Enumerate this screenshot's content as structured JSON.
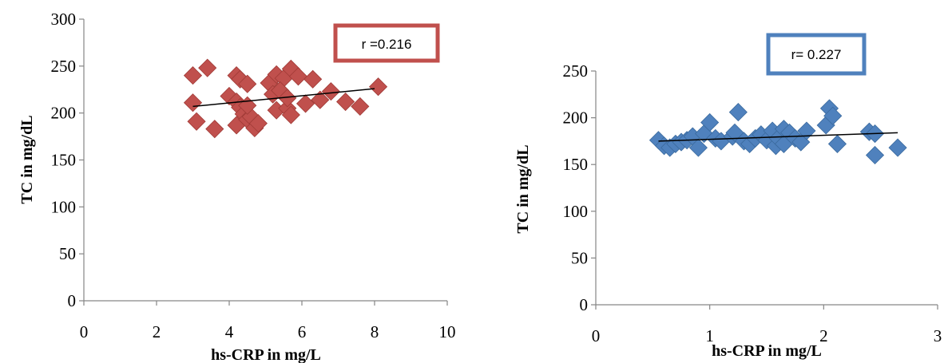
{
  "chart_data": [
    {
      "type": "scatter",
      "xlabel": "hs-CRP in mg/L",
      "ylabel": "TC in mg/dL",
      "xlim": [
        0,
        10
      ],
      "ylim": [
        0,
        300
      ],
      "x_ticks": [
        "0",
        "2",
        "4",
        "6",
        "8",
        "10"
      ],
      "y_ticks": [
        "0",
        "50",
        "100",
        "150",
        "200",
        "250",
        "300"
      ],
      "marker": "diamond",
      "marker_color": "#C0504D",
      "marker_edge_color": "#A03A36",
      "trendline": {
        "type": "linear",
        "x": [
          3.0,
          8.0
        ],
        "y": [
          207,
          226
        ]
      },
      "annotation": {
        "text": "r =0.216",
        "box_color": "#C0504D"
      },
      "grid": false,
      "legend": "none",
      "points": [
        {
          "x": 3.0,
          "y": 240
        },
        {
          "x": 3.4,
          "y": 248
        },
        {
          "x": 3.0,
          "y": 211
        },
        {
          "x": 3.1,
          "y": 191
        },
        {
          "x": 3.6,
          "y": 183
        },
        {
          "x": 4.0,
          "y": 218
        },
        {
          "x": 4.2,
          "y": 240
        },
        {
          "x": 4.3,
          "y": 236
        },
        {
          "x": 4.5,
          "y": 231
        },
        {
          "x": 4.2,
          "y": 212
        },
        {
          "x": 4.3,
          "y": 206
        },
        {
          "x": 4.4,
          "y": 199
        },
        {
          "x": 4.2,
          "y": 187
        },
        {
          "x": 4.5,
          "y": 193
        },
        {
          "x": 4.6,
          "y": 196
        },
        {
          "x": 4.7,
          "y": 184
        },
        {
          "x": 4.8,
          "y": 189
        },
        {
          "x": 4.5,
          "y": 208
        },
        {
          "x": 5.1,
          "y": 232
        },
        {
          "x": 5.2,
          "y": 220
        },
        {
          "x": 5.3,
          "y": 241
        },
        {
          "x": 5.5,
          "y": 237
        },
        {
          "x": 5.4,
          "y": 224
        },
        {
          "x": 5.3,
          "y": 203
        },
        {
          "x": 5.6,
          "y": 205
        },
        {
          "x": 5.6,
          "y": 216
        },
        {
          "x": 5.7,
          "y": 247
        },
        {
          "x": 5.9,
          "y": 239
        },
        {
          "x": 5.7,
          "y": 198
        },
        {
          "x": 6.1,
          "y": 210
        },
        {
          "x": 6.3,
          "y": 236
        },
        {
          "x": 6.5,
          "y": 214
        },
        {
          "x": 6.8,
          "y": 223
        },
        {
          "x": 7.2,
          "y": 212
        },
        {
          "x": 7.6,
          "y": 207
        },
        {
          "x": 8.1,
          "y": 228
        }
      ]
    },
    {
      "type": "scatter",
      "xlabel": "hs-CRP in mg/L",
      "ylabel": "TC in mg/dL",
      "xlim": [
        0,
        3
      ],
      "ylim": [
        0,
        250
      ],
      "x_ticks": [
        "0",
        "1",
        "2",
        "3"
      ],
      "y_ticks": [
        "0",
        "50",
        "100",
        "150",
        "200",
        "250"
      ],
      "marker": "diamond",
      "marker_color": "#4F81BD",
      "marker_edge_color": "#3A6A9E",
      "trendline": {
        "type": "linear",
        "x": [
          0.55,
          2.65
        ],
        "y": [
          175,
          184
        ]
      },
      "annotation": {
        "text": "r= 0.227",
        "box_color": "#4F81BD"
      },
      "grid": false,
      "legend": "none",
      "points": [
        {
          "x": 0.55,
          "y": 176
        },
        {
          "x": 0.6,
          "y": 170
        },
        {
          "x": 0.65,
          "y": 168
        },
        {
          "x": 0.7,
          "y": 172
        },
        {
          "x": 0.75,
          "y": 174
        },
        {
          "x": 0.8,
          "y": 176
        },
        {
          "x": 0.85,
          "y": 180
        },
        {
          "x": 0.9,
          "y": 168
        },
        {
          "x": 0.95,
          "y": 183
        },
        {
          "x": 1.0,
          "y": 195
        },
        {
          "x": 1.05,
          "y": 178
        },
        {
          "x": 1.1,
          "y": 175
        },
        {
          "x": 1.2,
          "y": 180
        },
        {
          "x": 1.22,
          "y": 184
        },
        {
          "x": 1.25,
          "y": 206
        },
        {
          "x": 1.3,
          "y": 175
        },
        {
          "x": 1.35,
          "y": 172
        },
        {
          "x": 1.4,
          "y": 178
        },
        {
          "x": 1.45,
          "y": 182
        },
        {
          "x": 1.5,
          "y": 176
        },
        {
          "x": 1.55,
          "y": 186
        },
        {
          "x": 1.58,
          "y": 170
        },
        {
          "x": 1.6,
          "y": 178
        },
        {
          "x": 1.65,
          "y": 188
        },
        {
          "x": 1.65,
          "y": 172
        },
        {
          "x": 1.7,
          "y": 184
        },
        {
          "x": 1.75,
          "y": 178
        },
        {
          "x": 1.8,
          "y": 174
        },
        {
          "x": 1.85,
          "y": 186
        },
        {
          "x": 2.02,
          "y": 192
        },
        {
          "x": 2.05,
          "y": 210
        },
        {
          "x": 2.08,
          "y": 202
        },
        {
          "x": 2.12,
          "y": 172
        },
        {
          "x": 2.4,
          "y": 185
        },
        {
          "x": 2.45,
          "y": 183
        },
        {
          "x": 2.45,
          "y": 160
        },
        {
          "x": 2.65,
          "y": 168
        }
      ]
    }
  ]
}
